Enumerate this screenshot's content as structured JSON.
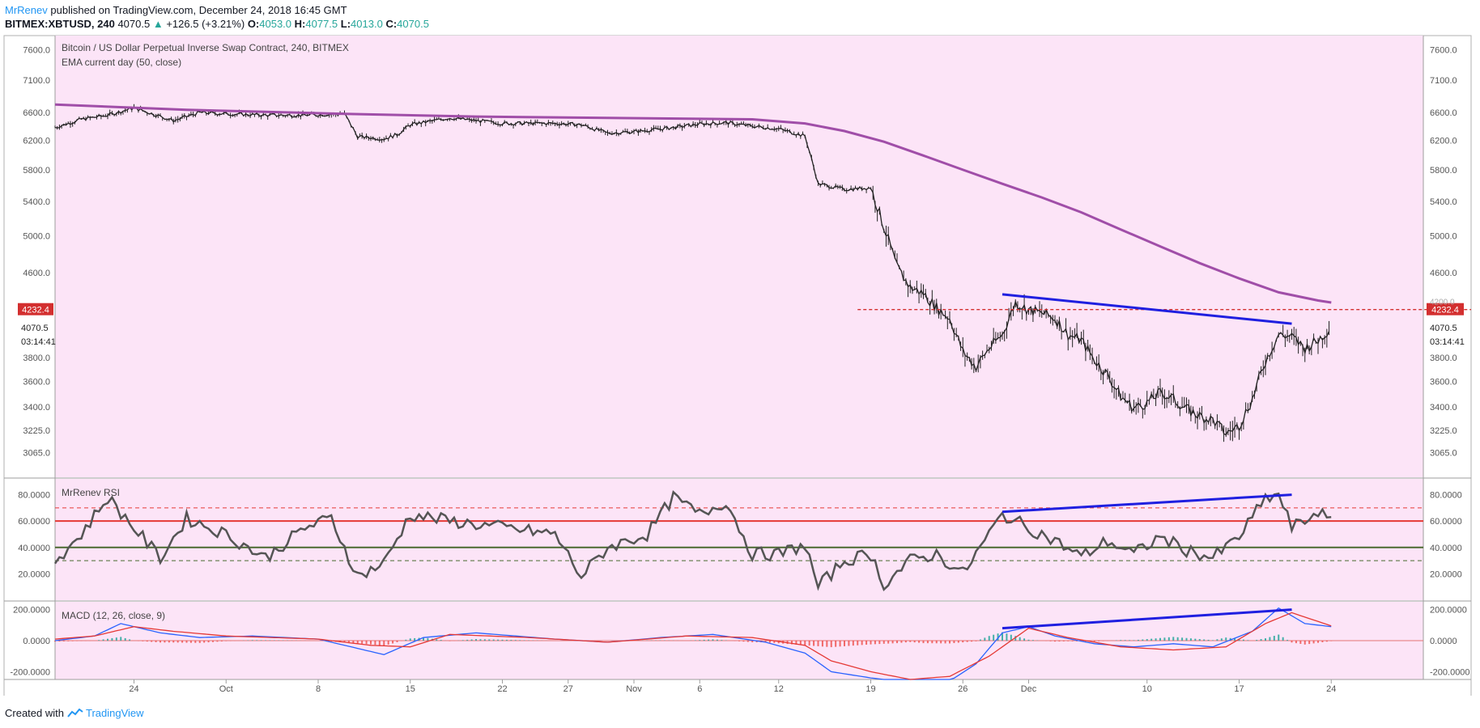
{
  "header": {
    "author": "MrRenev",
    "published_text": "published on TradingView.com, December 24, 2018 16:45 GMT",
    "symbol": "BITMEX:XBTUSD, 240",
    "last": "4070.5",
    "change": "+126.5 (+3.21%)",
    "o_label": "O:",
    "o": "4053.0",
    "h_label": "H:",
    "h": "4077.5",
    "l_label": "L:",
    "l": "4013.0",
    "c_label": "C:",
    "c": "4070.5"
  },
  "footer": {
    "created_with": "Created with",
    "brand": "TradingView"
  },
  "colors": {
    "pane_bg": "#fce4f7",
    "ema": "#a04ea8",
    "price": "#222222",
    "blue_line": "#1f1fe0",
    "red_line": "#e53935",
    "green_line": "#4a6a30",
    "macd_line": "#2962ff",
    "signal_line": "#e53935",
    "hist_pos": "#26a69a",
    "hist_neg": "#ef5350",
    "resistance": "#d32f2f"
  },
  "chart_data": [
    {
      "type": "line",
      "title": "Bitcoin / US Dollar Perpetual Inverse Swap Contract, 240, BITMEX",
      "indicator_label": "EMA current day (50, close)",
      "x_ticks": [
        "24",
        "Oct",
        "8",
        "15",
        "22",
        "27",
        "Nov",
        "6",
        "12",
        "19",
        "26",
        "Dec",
        "10",
        "17",
        "24"
      ],
      "y_ticks": [
        7600,
        7100,
        6600,
        6200,
        5800,
        5400,
        5000,
        4600,
        3800,
        3600,
        3400,
        3225,
        3065
      ],
      "y_scale": "log",
      "price_labels": {
        "resistance": "4232.4",
        "last": "4070.5",
        "countdown": "03:14:41",
        "hidden_tick": "4200.0"
      },
      "series": [
        {
          "name": "XBTUSD",
          "x": [
            "Sep 18",
            "Sep 20",
            "Sep 22",
            "Sep 24",
            "Sep 27",
            "Sep 29",
            "Oct 1",
            "Oct 4",
            "Oct 7",
            "Oct 10",
            "Oct 11",
            "Oct 13",
            "Oct 14",
            "Oct 15",
            "Oct 18",
            "Oct 22",
            "Oct 26",
            "Oct 28",
            "Oct 30",
            "Nov 1",
            "Nov 4",
            "Nov 6",
            "Nov 8",
            "Nov 10",
            "Nov 12",
            "Nov 14",
            "Nov 15",
            "Nov 17",
            "Nov 19",
            "Nov 20",
            "Nov 21",
            "Nov 22",
            "Nov 23",
            "Nov 24",
            "Nov 25",
            "Nov 26",
            "Nov 27",
            "Nov 28",
            "Nov 29",
            "Nov 30",
            "Dec 1",
            "Dec 2",
            "Dec 3",
            "Dec 4",
            "Dec 5",
            "Dec 6",
            "Dec 7",
            "Dec 8",
            "Dec 9",
            "Dec 10",
            "Dec 11",
            "Dec 12",
            "Dec 13",
            "Dec 14",
            "Dec 15",
            "Dec 16",
            "Dec 17",
            "Dec 18",
            "Dec 19",
            "Dec 20",
            "Dec 21",
            "Dec 22",
            "Dec 23",
            "Dec 24"
          ],
          "values": [
            6380,
            6500,
            6560,
            6670,
            6480,
            6600,
            6580,
            6560,
            6560,
            6580,
            6250,
            6220,
            6280,
            6420,
            6520,
            6440,
            6440,
            6420,
            6300,
            6320,
            6380,
            6430,
            6450,
            6400,
            6360,
            6260,
            5620,
            5550,
            5570,
            5100,
            4650,
            4450,
            4390,
            4250,
            4150,
            3850,
            3720,
            3880,
            4000,
            4300,
            4230,
            4200,
            4150,
            4000,
            3950,
            3780,
            3650,
            3480,
            3390,
            3430,
            3510,
            3460,
            3380,
            3330,
            3300,
            3200,
            3260,
            3460,
            3770,
            4000,
            3980,
            3880,
            3950,
            4070.5
          ]
        },
        {
          "name": "EMA (50, close)",
          "x": [
            "Sep 18",
            "Sep 28",
            "Oct 10",
            "Oct 20",
            "Oct 30",
            "Nov 10",
            "Nov 14",
            "Nov 17",
            "Nov 20",
            "Nov 23",
            "Nov 26",
            "Nov 29",
            "Dec 2",
            "Dec 5",
            "Dec 8",
            "Dec 11",
            "Dec 14",
            "Dec 17",
            "Dec 20",
            "Dec 23",
            "Dec 24"
          ],
          "values": [
            6720,
            6640,
            6580,
            6540,
            6520,
            6500,
            6440,
            6330,
            6180,
            5990,
            5800,
            5620,
            5450,
            5270,
            5070,
            4880,
            4700,
            4540,
            4400,
            4320,
            4300
          ]
        }
      ]
    },
    {
      "type": "line",
      "title": "MrRenev RSI",
      "y_ticks": [
        "80.0000",
        "60.0000",
        "40.0000",
        "20.0000"
      ],
      "ylim": [
        0,
        92
      ],
      "levels": [
        70,
        60,
        40,
        30
      ],
      "series": [
        {
          "name": "RSI",
          "x": [
            "Sep 18",
            "Sep 20",
            "Sep 22",
            "Sep 24",
            "Sep 26",
            "Sep 28",
            "Oct 1",
            "Oct 4",
            "Oct 7",
            "Oct 9",
            "Oct 11",
            "Oct 13",
            "Oct 15",
            "Oct 18",
            "Oct 22",
            "Oct 26",
            "Oct 28",
            "Oct 30",
            "Nov 2",
            "Nov 4",
            "Nov 6",
            "Nov 8",
            "Nov 10",
            "Nov 12",
            "Nov 14",
            "Nov 15",
            "Nov 17",
            "Nov 19",
            "Nov 20",
            "Nov 22",
            "Nov 24",
            "Nov 26",
            "Nov 29",
            "Dec 1",
            "Dec 3",
            "Dec 5",
            "Dec 7",
            "Dec 9",
            "Dec 11",
            "Dec 13",
            "Dec 15",
            "Dec 17",
            "Dec 19",
            "Dec 20",
            "Dec 21",
            "Dec 22",
            "Dec 23",
            "Dec 24"
          ],
          "values": [
            30,
            50,
            78,
            55,
            32,
            62,
            50,
            32,
            55,
            62,
            18,
            28,
            65,
            60,
            55,
            50,
            18,
            40,
            50,
            78,
            65,
            75,
            35,
            35,
            42,
            10,
            30,
            35,
            12,
            30,
            35,
            20,
            65,
            55,
            45,
            33,
            45,
            35,
            48,
            38,
            32,
            48,
            77,
            80,
            55,
            60,
            68,
            58
          ]
        }
      ]
    },
    {
      "type": "line",
      "title": "MACD (12, 26, close, 9)",
      "y_ticks": [
        "200.0000",
        "0.0000",
        "-200.0000"
      ],
      "ylim": [
        -250,
        250
      ],
      "series": [
        {
          "name": "MACD",
          "x": [
            "Sep 18",
            "Sep 21",
            "Sep 23",
            "Sep 26",
            "Sep 29",
            "Oct 3",
            "Oct 8",
            "Oct 11",
            "Oct 13",
            "Oct 16",
            "Oct 20",
            "Oct 26",
            "Oct 30",
            "Nov 3",
            "Nov 7",
            "Nov 11",
            "Nov 14",
            "Nov 16",
            "Nov 19",
            "Nov 21",
            "Nov 23",
            "Nov 25",
            "Nov 27",
            "Nov 29",
            "Dec 1",
            "Dec 3",
            "Dec 6",
            "Dec 9",
            "Dec 12",
            "Dec 15",
            "Dec 18",
            "Dec 20",
            "Dec 22",
            "Dec 24"
          ],
          "values": [
            0,
            30,
            110,
            50,
            20,
            30,
            10,
            -50,
            -90,
            20,
            50,
            10,
            -10,
            20,
            40,
            -10,
            -80,
            -200,
            -240,
            -260,
            -270,
            -260,
            -150,
            50,
            90,
            30,
            -20,
            -40,
            -20,
            -40,
            60,
            210,
            110,
            90
          ]
        },
        {
          "name": "Signal",
          "x": [
            "Sep 18",
            "Sep 21",
            "Sep 24",
            "Sep 27",
            "Oct 1",
            "Oct 8",
            "Oct 12",
            "Oct 15",
            "Oct 18",
            "Oct 24",
            "Oct 30",
            "Nov 5",
            "Nov 10",
            "Nov 14",
            "Nov 16",
            "Nov 19",
            "Nov 22",
            "Nov 25",
            "Nov 28",
            "Dec 1",
            "Dec 4",
            "Dec 8",
            "Dec 12",
            "Dec 16",
            "Dec 19",
            "Dec 21",
            "Dec 24"
          ],
          "values": [
            10,
            30,
            90,
            60,
            30,
            10,
            -30,
            -40,
            40,
            20,
            -10,
            30,
            20,
            -30,
            -130,
            -200,
            -250,
            -230,
            -100,
            80,
            20,
            -40,
            -60,
            -40,
            110,
            180,
            95
          ]
        }
      ]
    }
  ],
  "annotations": {
    "price_trendline": {
      "x": [
        "Nov 29",
        "Dec 21"
      ],
      "values": [
        4380,
        4100
      ]
    },
    "rsi_trendline": {
      "x": [
        "Nov 29",
        "Dec 21"
      ],
      "values": [
        67,
        80
      ]
    },
    "macd_trendline": {
      "x": [
        "Nov 29",
        "Dec 21"
      ],
      "values": [
        80,
        200
      ]
    },
    "resistance_level": 4232.4
  }
}
